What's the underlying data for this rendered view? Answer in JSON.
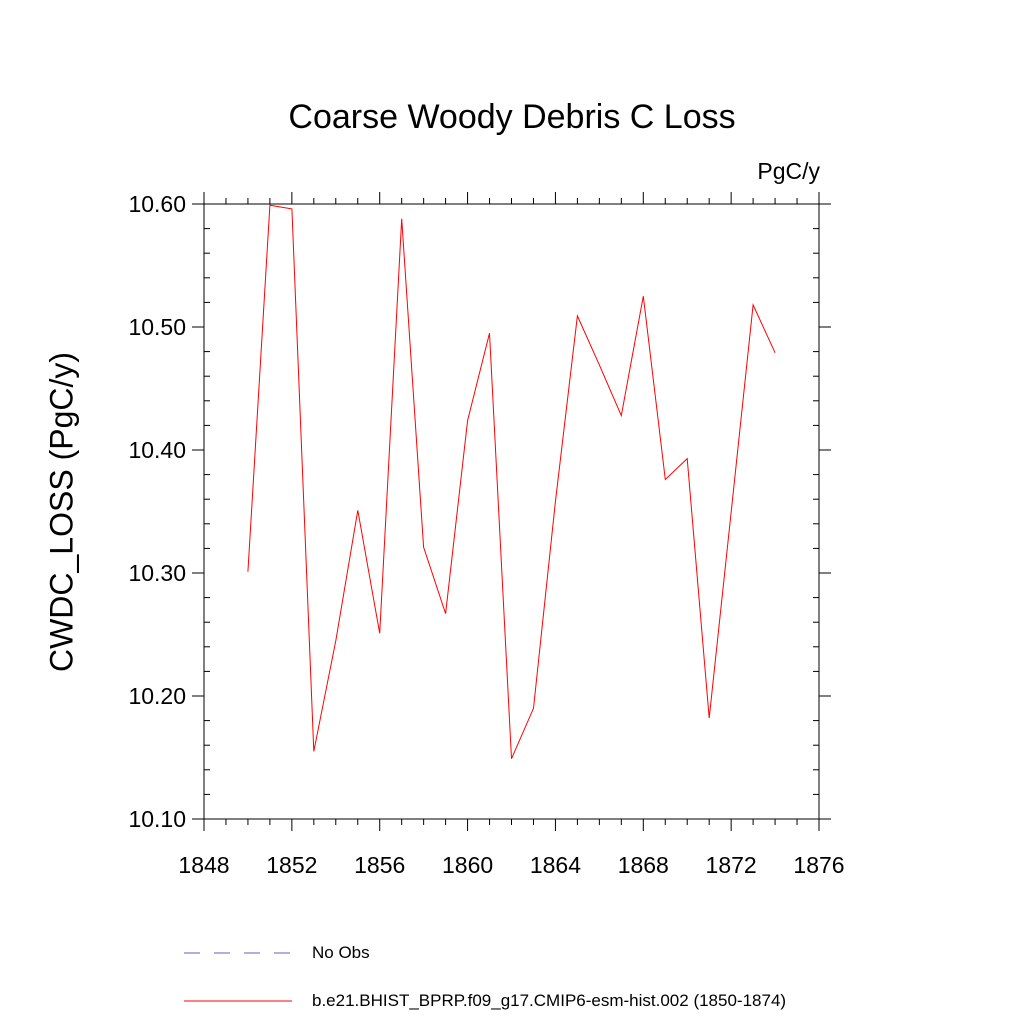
{
  "chart_data": {
    "type": "line",
    "title": "Coarse Woody Debris C Loss",
    "units_label": "PgC/y",
    "xlabel": "",
    "ylabel": "CWDC_LOSS  (PgC/y)",
    "xlim": [
      1848,
      1876
    ],
    "ylim": [
      10.1,
      10.6
    ],
    "x_ticks": [
      1848,
      1852,
      1856,
      1860,
      1864,
      1868,
      1872,
      1876
    ],
    "y_ticks": [
      10.1,
      10.2,
      10.3,
      10.4,
      10.5,
      10.6
    ],
    "y_tick_labels": [
      "10.10",
      "10.20",
      "10.30",
      "10.40",
      "10.50",
      "10.60"
    ],
    "x_minor_step": 1,
    "y_minor_step": 0.02,
    "grid": false,
    "legend_position": "bottom",
    "series": [
      {
        "name": "b.e21.BHIST_BPRP.f09_g17.CMIP6-esm-hist.002 (1850-1874)",
        "color": "#ff0000",
        "dash": "solid",
        "x": [
          1850,
          1851,
          1852,
          1853,
          1854,
          1855,
          1856,
          1857,
          1858,
          1859,
          1860,
          1861,
          1862,
          1863,
          1864,
          1865,
          1866,
          1867,
          1868,
          1869,
          1870,
          1871,
          1872,
          1873,
          1874
        ],
        "values": [
          10.301,
          10.599,
          10.596,
          10.155,
          10.245,
          10.351,
          10.251,
          10.588,
          10.321,
          10.267,
          10.424,
          10.495,
          10.149,
          10.19,
          10.358,
          10.509,
          10.469,
          10.428,
          10.525,
          10.376,
          10.393,
          10.182,
          10.349,
          10.518,
          10.479
        ]
      }
    ],
    "legend": [
      {
        "label": "No Obs",
        "color": "#6a5acd",
        "dash": "dashed"
      },
      {
        "label": "b.e21.BHIST_BPRP.f09_g17.CMIP6-esm-hist.002 (1850-1874)",
        "color": "#ff0000",
        "dash": "solid"
      }
    ]
  }
}
